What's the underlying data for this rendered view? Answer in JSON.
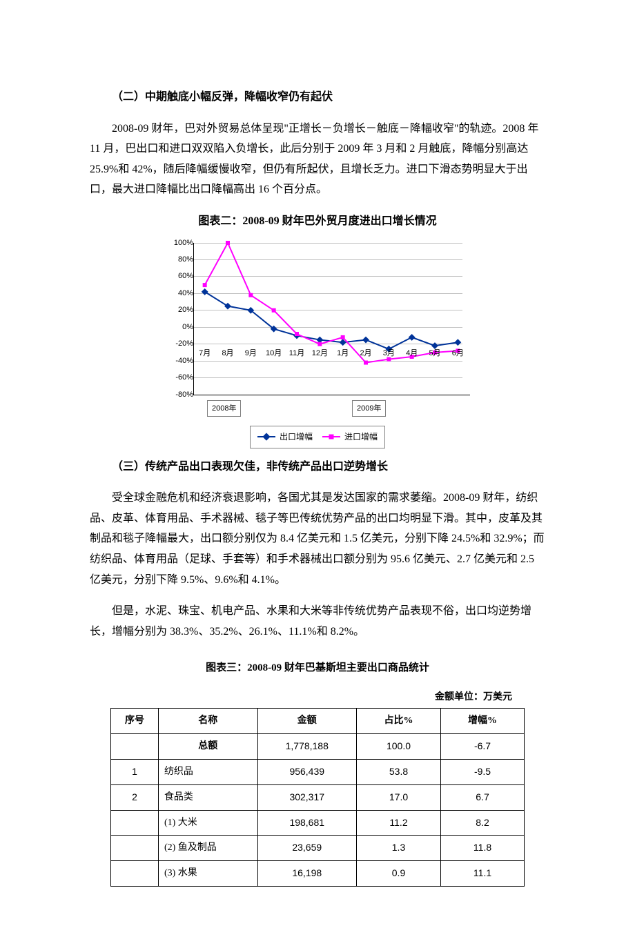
{
  "section2": {
    "heading": "（二）中期触底小幅反弹，降幅收窄仍有起伏",
    "para": "2008-09 财年，巴对外贸易总体呈现\"正增长－负增长－触底－降幅收窄\"的轨迹。2008 年 11 月，巴出口和进口双双陷入负增长，此后分别于 2009 年 3 月和 2 月触底，降幅分别高达 25.9%和 42%，随后降幅缓慢收窄，但仍有所起伏，且增长乏力。进口下滑态势明显大于出口，最大进口降幅比出口降幅高出 16 个百分点。"
  },
  "chart2": {
    "type": "line",
    "title": "图表二：2008-09 财年巴外贸月度进出口增长情况",
    "x_labels": [
      "7月",
      "8月",
      "9月",
      "10月",
      "11月",
      "12月",
      "1月",
      "2月",
      "3月",
      "4月",
      "5月",
      "6月"
    ],
    "year_labels": [
      "2008年",
      "2009年"
    ],
    "ylim": [
      -80,
      100
    ],
    "ytick_step": 20,
    "ytick_labels": [
      "100%",
      "80%",
      "60%",
      "40%",
      "20%",
      "0%",
      "-20%",
      "-40%",
      "-60%",
      "-80%"
    ],
    "grid_color": "#c0c0c0",
    "background_color": "#ffffff",
    "series": [
      {
        "name": "出口增幅",
        "color": "#003399",
        "marker": "diamond",
        "values": [
          42,
          25,
          20,
          -2,
          -10,
          -15,
          -18,
          -15,
          -25.9,
          -12,
          -22,
          -18
        ]
      },
      {
        "name": "进口增幅",
        "color": "#ff00ff",
        "marker": "square",
        "values": [
          50,
          100,
          38,
          20,
          -8,
          -20,
          -12,
          -42,
          -38,
          -35,
          -30,
          -28
        ]
      }
    ],
    "legend": {
      "label_export": "出口增幅",
      "label_import": "进口增幅"
    }
  },
  "section3": {
    "heading": "（三）传统产品出口表现欠佳，非传统产品出口逆势增长",
    "para1": "受全球金融危机和经济衰退影响，各国尤其是发达国家的需求萎缩。2008-09 财年，纺织品、皮革、体育用品、手术器械、毯子等巴传统优势产品的出口均明显下滑。其中，皮革及其制品和毯子降幅最大，出口额分别仅为 8.4 亿美元和 1.5 亿美元，分别下降 24.5%和 32.9%；而纺织品、体育用品（足球、手套等）和手术器械出口额分别为 95.6 亿美元、2.7 亿美元和 2.5 亿美元，分别下降 9.5%、9.6%和 4.1%。",
    "para2": "但是，水泥、珠宝、机电产品、水果和大米等非传统优势产品表现不俗，出口均逆势增长，增幅分别为 38.3%、35.2%、26.1%、11.1%和 8.2%。"
  },
  "table3": {
    "type": "table",
    "title": "图表三：2008-09 财年巴基斯坦主要出口商品统计",
    "unit": "金额单位：万美元",
    "columns": [
      "序号",
      "名称",
      "金额",
      "占比%",
      "增幅%"
    ],
    "total_row": {
      "name": "总额",
      "amount": "1,778,188",
      "share": "100.0",
      "growth": "-6.7"
    },
    "rows": [
      {
        "no": "1",
        "name": "纺织品",
        "amount": "956,439",
        "share": "53.8",
        "growth": "-9.5"
      },
      {
        "no": "2",
        "name": "食品类",
        "amount": "302,317",
        "share": "17.0",
        "growth": "6.7"
      },
      {
        "no": "",
        "name": "(1) 大米",
        "amount": "198,681",
        "share": "11.2",
        "growth": "8.2"
      },
      {
        "no": "",
        "name": "(2) 鱼及制品",
        "amount": "23,659",
        "share": "1.3",
        "growth": "11.8"
      },
      {
        "no": "",
        "name": "(3) 水果",
        "amount": "16,198",
        "share": "0.9",
        "growth": "11.1"
      }
    ]
  }
}
